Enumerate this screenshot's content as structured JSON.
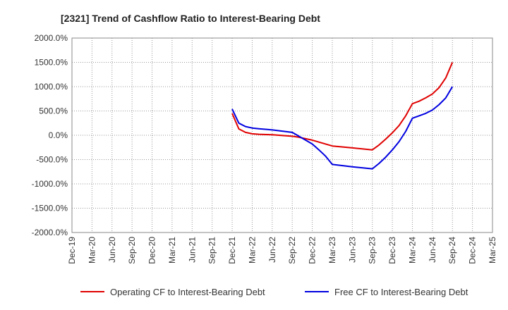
{
  "chart_data": {
    "type": "line",
    "title": "[2321]  Trend of Cashflow Ratio to Interest-Bearing Debt",
    "xlabel": "",
    "ylabel": "",
    "ylim": [
      -2000,
      2000
    ],
    "y_ticks": [
      2000,
      1500,
      1000,
      500,
      0,
      -500,
      -1000,
      -1500,
      -2000
    ],
    "y_tick_labels": [
      "2000.0%",
      "1500.0%",
      "1000.0%",
      "500.0%",
      "0.0%",
      "-500.0%",
      "-1000.0%",
      "-1500.0%",
      "-2000.0%"
    ],
    "x_tick_labels": [
      "Dec-19",
      "Mar-20",
      "Jun-20",
      "Sep-20",
      "Dec-20",
      "Mar-21",
      "Jun-21",
      "Sep-21",
      "Dec-21",
      "Mar-22",
      "Jun-22",
      "Sep-22",
      "Dec-22",
      "Mar-23",
      "Jun-23",
      "Sep-23",
      "Dec-23",
      "Mar-24",
      "Jun-24",
      "Sep-24",
      "Dec-24",
      "Mar-25"
    ],
    "grid": true,
    "legend_position": "bottom",
    "series": [
      {
        "name": "Operating CF to Interest-Bearing Debt",
        "color": "#e00000",
        "x": [
          "Dec-21",
          "Jan-22",
          "Feb-22",
          "Mar-22",
          "Apr-22",
          "Jun-22",
          "Sep-22",
          "Oct-22",
          "Dec-22",
          "Mar-23",
          "Jun-23",
          "Sep-23",
          "Oct-23",
          "Nov-23",
          "Dec-23",
          "Jan-24",
          "Feb-24",
          "Mar-24",
          "Apr-24",
          "May-24",
          "Jun-24",
          "Jul-24",
          "Aug-24",
          "Sep-24"
        ],
        "values": [
          450,
          130,
          60,
          30,
          20,
          10,
          -20,
          -40,
          -100,
          -220,
          -260,
          -300,
          -200,
          -80,
          50,
          200,
          400,
          650,
          700,
          770,
          850,
          980,
          1180,
          1500
        ]
      },
      {
        "name": "Free CF to Interest-Bearing Debt",
        "color": "#0000e0",
        "x": [
          "Dec-21",
          "Jan-22",
          "Feb-22",
          "Mar-22",
          "Apr-22",
          "Jun-22",
          "Sep-22",
          "Oct-22",
          "Nov-22",
          "Dec-22",
          "Jan-23",
          "Feb-23",
          "Mar-23",
          "Jun-23",
          "Sep-23",
          "Oct-23",
          "Nov-23",
          "Dec-23",
          "Jan-24",
          "Feb-24",
          "Mar-24",
          "Apr-24",
          "May-24",
          "Jun-24",
          "Jul-24",
          "Aug-24",
          "Sep-24"
        ],
        "values": [
          540,
          250,
          180,
          150,
          135,
          110,
          60,
          -20,
          -100,
          -180,
          -300,
          -430,
          -600,
          -650,
          -690,
          -580,
          -450,
          -300,
          -130,
          80,
          350,
          400,
          450,
          520,
          630,
          770,
          1000
        ]
      }
    ]
  }
}
